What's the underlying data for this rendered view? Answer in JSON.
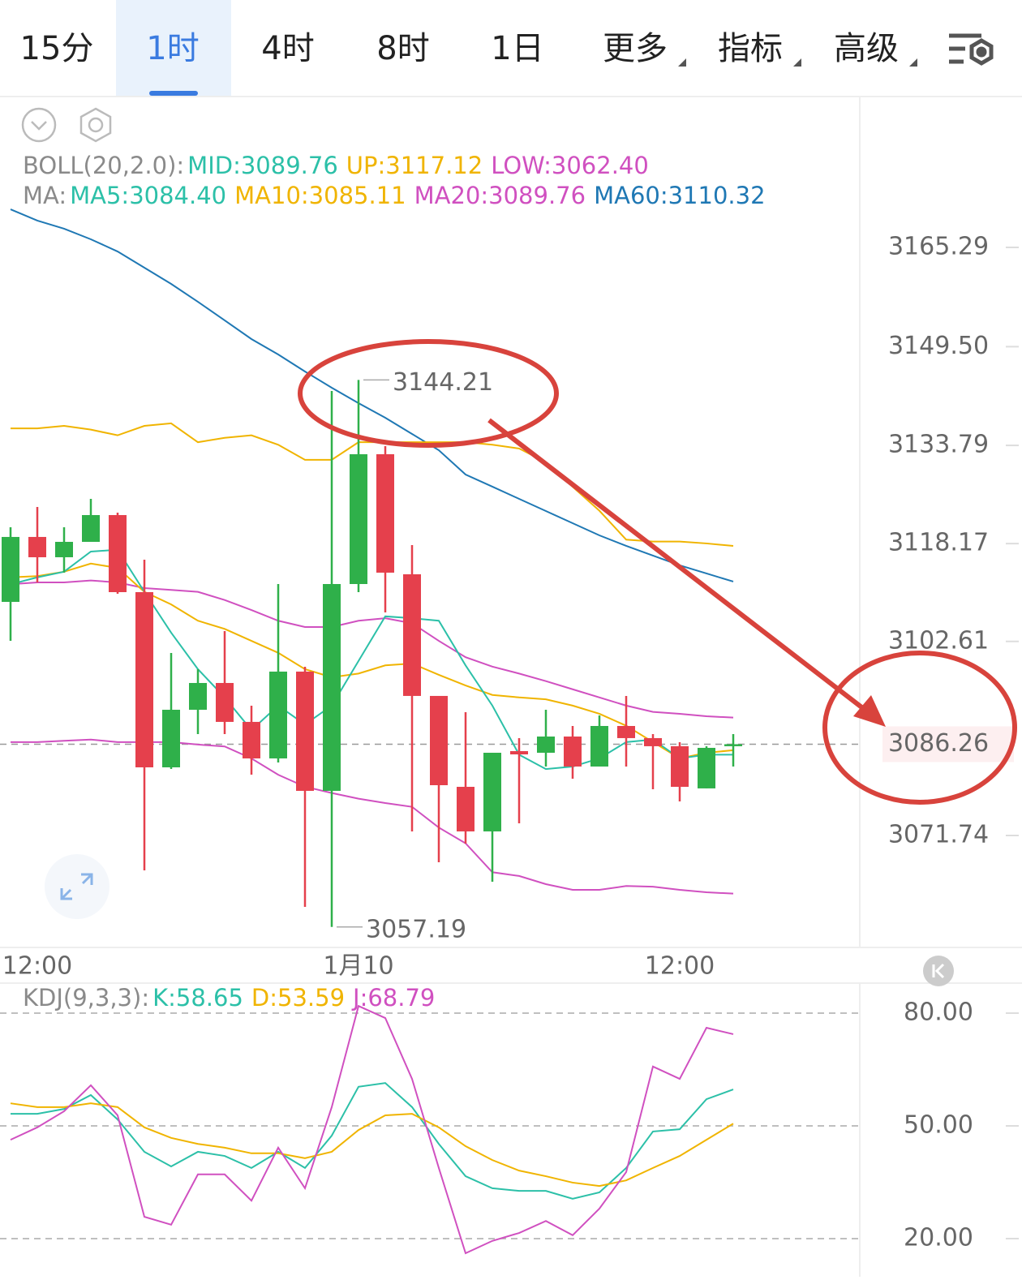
{
  "tabs": [
    "15分",
    "1时",
    "4时",
    "8时",
    "1日",
    "更多",
    "指标",
    "高级"
  ],
  "chart_data": [
    {
      "type": "candlestick",
      "legend": [
        {
          "label": "BOLL(20,2.0):",
          "items": [
            {
              "text": "MID:3089.76",
              "color": "#2cc0a8"
            },
            {
              "text": "UP:3117.12",
              "color": "#f0b400"
            },
            {
              "text": "LOW:3062.40",
              "color": "#d050c0"
            }
          ]
        },
        {
          "label": "MA:",
          "items": [
            {
              "text": "MA5:3084.40",
              "color": "#2cc0a8"
            },
            {
              "text": "MA10:3085.11",
              "color": "#f0b400"
            },
            {
              "text": "MA20:3089.76",
              "color": "#d050c0"
            },
            {
              "text": "MA60:3110.32",
              "color": "#1f78b4"
            }
          ]
        }
      ],
      "categories": [
        null,
        "12:00",
        null,
        null,
        null,
        null,
        null,
        null,
        null,
        null,
        null,
        null,
        null,
        "1月10",
        null,
        null,
        null,
        null,
        null,
        null,
        null,
        null,
        null,
        null,
        null,
        "12:00",
        null,
        null
      ],
      "open": [
        3108.9,
        3119.23,
        3116.0,
        3118.45,
        3122.71,
        3110.45,
        3082.58,
        3091.74,
        3096.0,
        3089.81,
        3084.0,
        3097.81,
        3078.84,
        3111.74,
        3132.39,
        3113.29,
        3093.94,
        3079.48,
        3072.39,
        3085.16,
        3084.9,
        3087.48,
        3082.71,
        3089.16,
        3087.23,
        3085.94,
        3079.23,
        3085.94
      ],
      "high": [
        3120.77,
        3124.0,
        3120.77,
        3125.29,
        3123.1,
        3115.61,
        3100.77,
        3098.19,
        3104.26,
        3092.39,
        3111.74,
        3098.58,
        3142.45,
        3144.21,
        3133.68,
        3117.94,
        3093.94,
        3091.35,
        3084.9,
        3087.23,
        3091.74,
        3089.16,
        3090.84,
        3093.94,
        3087.87,
        3086.58,
        3085.94,
        3087.87
      ],
      "low": [
        3102.71,
        3112.0,
        3113.55,
        3118.45,
        3110.19,
        3066.19,
        3082.32,
        3087.87,
        3087.87,
        3081.42,
        3083.35,
        3060.39,
        3057.19,
        3110.45,
        3107.23,
        3072.39,
        3067.48,
        3070.45,
        3064.39,
        3073.68,
        3082.71,
        3080.77,
        3082.71,
        3082.71,
        3079.1,
        3077.16,
        3079.23,
        3082.71
      ],
      "close": [
        3119.23,
        3116.0,
        3118.45,
        3122.71,
        3110.45,
        3082.58,
        3091.74,
        3096.0,
        3089.81,
        3084.0,
        3097.81,
        3078.84,
        3111.74,
        3132.39,
        3113.55,
        3093.94,
        3079.74,
        3072.39,
        3084.9,
        3084.64,
        3087.48,
        3082.71,
        3089.16,
        3087.23,
        3085.94,
        3079.48,
        3085.68,
        3086.26
      ],
      "up_color": "#2fb04a",
      "down_color": "#e5404c",
      "lines": [
        {
          "color": "#1f78b4",
          "values": [
            3171.35,
            3169.55,
            3168.26,
            3166.58,
            3164.64,
            3162.06,
            3159.48,
            3156.64,
            3153.68,
            3150.71,
            3148.26,
            3145.55,
            3142.97,
            3140.52,
            3138.19,
            3135.61,
            3133.03,
            3129.16,
            3127.23,
            3125.29,
            3123.35,
            3121.42,
            3119.48,
            3117.81,
            3116.26,
            3114.71,
            3113.42,
            3112.13
          ]
        },
        {
          "color": "#f0b400",
          "values": [
            3136.5,
            3136.5,
            3136.9,
            3136.3,
            3135.4,
            3136.9,
            3137.3,
            3134.3,
            3135.0,
            3135.4,
            3133.9,
            3131.5,
            3131.5,
            3134.3,
            3134.3,
            3134.3,
            3134.3,
            3134.3,
            3133.9,
            3133.3,
            3131.1,
            3127.2,
            3123.4,
            3118.8,
            3118.5,
            3118.5,
            3118.2,
            3117.8
          ]
        },
        {
          "color": "#d050c0",
          "values": [
            3111.7,
            3112.0,
            3112.0,
            3112.3,
            3112.0,
            3111.1,
            3110.8,
            3110.5,
            3109.2,
            3107.6,
            3105.9,
            3104.9,
            3104.9,
            3105.9,
            3106.3,
            3105.5,
            3102.7,
            3100.1,
            3098.6,
            3097.5,
            3096.3,
            3095.0,
            3093.7,
            3092.4,
            3091.4,
            3091.1,
            3090.7,
            3090.5
          ]
        },
        {
          "color": "#d050c0",
          "values": [
            3086.6,
            3086.6,
            3086.8,
            3087.0,
            3086.6,
            3086.6,
            3086.6,
            3086.2,
            3085.9,
            3084.0,
            3081.4,
            3079.5,
            3078.5,
            3077.6,
            3076.9,
            3076.3,
            3073.0,
            3070.5,
            3065.9,
            3065.3,
            3064.0,
            3063.1,
            3063.1,
            3063.7,
            3063.6,
            3063.1,
            3062.7,
            3062.5
          ]
        },
        {
          "color": "#f0b400",
          "values": [
            3112.8,
            3113.0,
            3113.7,
            3115.0,
            3114.3,
            3110.5,
            3108.5,
            3105.9,
            3104.6,
            3102.7,
            3100.8,
            3098.2,
            3096.9,
            3097.5,
            3098.8,
            3099.1,
            3097.3,
            3095.6,
            3094.1,
            3093.7,
            3093.4,
            3092.4,
            3091.1,
            3089.2,
            3086.6,
            3084.0,
            3084.9,
            3085.3
          ]
        },
        {
          "color": "#2cc0a8",
          "values": [
            3111.7,
            3112.8,
            3113.7,
            3116.9,
            3117.2,
            3110.5,
            3104.0,
            3098.2,
            3093.7,
            3088.5,
            3092.4,
            3089.4,
            3092.4,
            3099.5,
            3106.6,
            3106.3,
            3105.9,
            3098.8,
            3092.4,
            3084.6,
            3082.3,
            3082.7,
            3084.0,
            3086.6,
            3087.0,
            3084.0,
            3084.6,
            3084.6
          ]
        }
      ],
      "ylim": [
        3054.32,
        3189.16
      ],
      "yticks": [
        3165.29,
        {
          "value": 3149.5,
          "label": "3149.50"
        },
        3133.79,
        3118.17,
        3102.61,
        3071.74
      ],
      "last_price": 3086.26,
      "last_price_color": "#e5404c"
    },
    {
      "type": "line",
      "title": "KDJ(9,3,3):",
      "series": [
        {
          "name": "K:58.65",
          "color": "#2cc0a8",
          "values": [
            53.2,
            53.2,
            54.5,
            58.2,
            51.7,
            43.1,
            39.2,
            43.1,
            42.0,
            38.8,
            43.1,
            38.8,
            47.4,
            60.4,
            61.4,
            55.0,
            45.2,
            36.6,
            33.4,
            32.7,
            32.7,
            30.6,
            32.3,
            38.8,
            48.5,
            49.1,
            57.1,
            59.7
          ]
        },
        {
          "name": "D:53.59",
          "color": "#f0b400",
          "values": [
            56.0,
            55.0,
            55.0,
            56.0,
            55.0,
            49.6,
            46.8,
            45.2,
            44.2,
            42.7,
            42.7,
            41.4,
            43.1,
            48.9,
            52.8,
            53.2,
            49.6,
            44.6,
            40.9,
            38.1,
            36.6,
            34.9,
            34.0,
            35.5,
            38.8,
            42.0,
            46.3,
            50.6
          ]
        },
        {
          "name": "J:68.79",
          "color": "#d050c0",
          "values": [
            46.3,
            49.6,
            53.9,
            60.8,
            52.8,
            25.8,
            23.7,
            37.1,
            37.1,
            30.1,
            44.2,
            33.4,
            55.0,
            81.9,
            78.7,
            62.5,
            38.8,
            16.1,
            19.4,
            21.5,
            24.7,
            20.9,
            28.0,
            37.7,
            65.8,
            62.5,
            76.1,
            74.4
          ]
        }
      ],
      "ylim": [
        9.85,
        87.34
      ],
      "yticks": [
        {
          "value": 80,
          "label": "80.00"
        },
        {
          "value": 50,
          "label": "50.00"
        },
        {
          "value": 20,
          "label": "20.00"
        }
      ],
      "grid": true
    }
  ]
}
